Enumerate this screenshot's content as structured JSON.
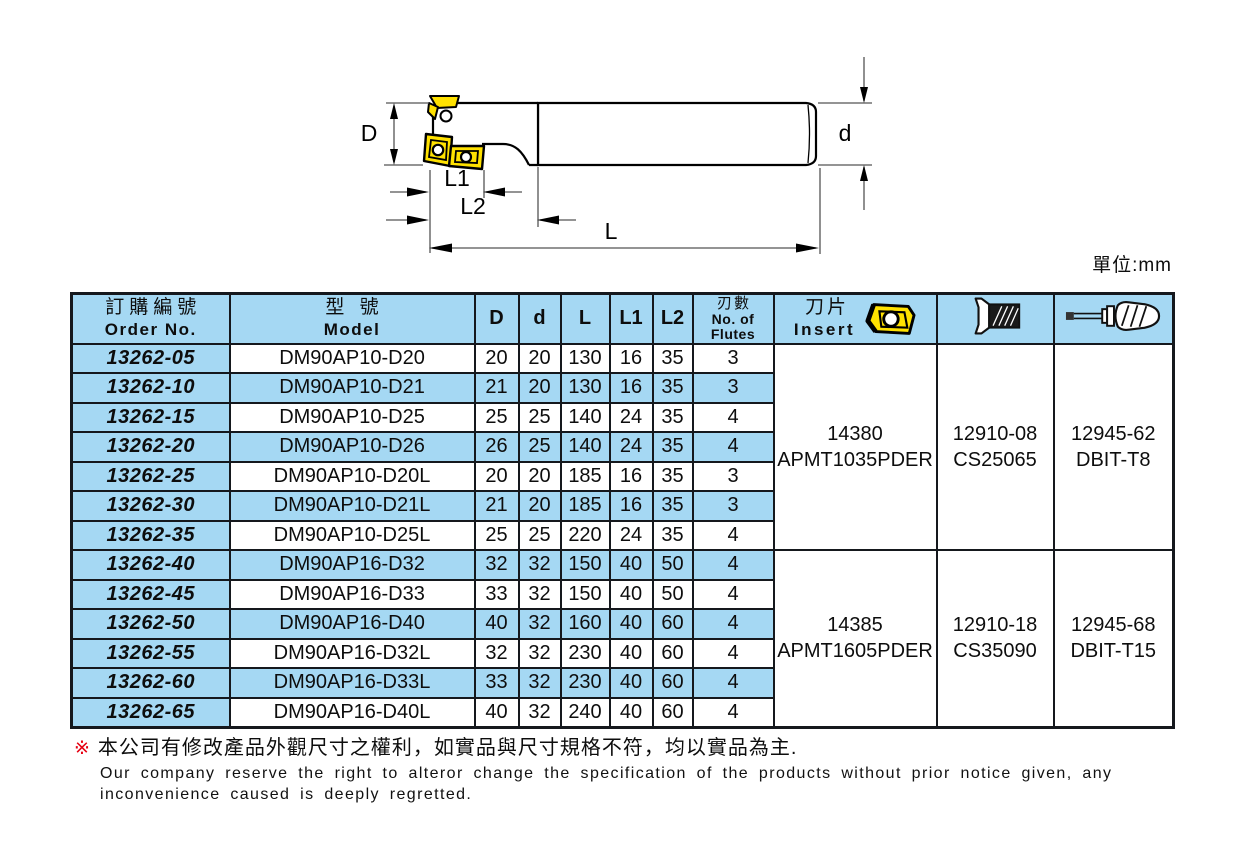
{
  "unit_label": "單位:mm",
  "diagram": {
    "name": "indexable-end-mill-technical-drawing",
    "labels": {
      "D": "D",
      "d": "d",
      "L1": "L1",
      "L2": "L2",
      "L": "L"
    },
    "icons": [
      "milling-insert",
      "screw-hole"
    ]
  },
  "table": {
    "headers": {
      "order_zh": "訂購編號",
      "order_en": "Order No.",
      "model_zh": "型 號",
      "model_en": "Model",
      "D": "D",
      "d": "d",
      "L": "L",
      "L1": "L1",
      "L2": "L2",
      "flutes_zh": "刃數",
      "flutes_en1": "No. of",
      "flutes_en2": "Flutes",
      "insert_zh": "刀片",
      "insert_en": "Insert",
      "insert_icon": "milling-insert-icon",
      "screw_icon": "countersunk-screw-icon",
      "driver_icon": "torx-driver-icon"
    },
    "rows": [
      {
        "order": "13262-05",
        "model": "DM90AP10-D20",
        "D": "20",
        "d": "20",
        "L": "130",
        "L1": "16",
        "L2": "35",
        "flutes": "3"
      },
      {
        "order": "13262-10",
        "model": "DM90AP10-D21",
        "D": "21",
        "d": "20",
        "L": "130",
        "L1": "16",
        "L2": "35",
        "flutes": "3"
      },
      {
        "order": "13262-15",
        "model": "DM90AP10-D25",
        "D": "25",
        "d": "25",
        "L": "140",
        "L1": "24",
        "L2": "35",
        "flutes": "4"
      },
      {
        "order": "13262-20",
        "model": "DM90AP10-D26",
        "D": "26",
        "d": "25",
        "L": "140",
        "L1": "24",
        "L2": "35",
        "flutes": "4"
      },
      {
        "order": "13262-25",
        "model": "DM90AP10-D20L",
        "D": "20",
        "d": "20",
        "L": "185",
        "L1": "16",
        "L2": "35",
        "flutes": "3"
      },
      {
        "order": "13262-30",
        "model": "DM90AP10-D21L",
        "D": "21",
        "d": "20",
        "L": "185",
        "L1": "16",
        "L2": "35",
        "flutes": "3"
      },
      {
        "order": "13262-35",
        "model": "DM90AP10-D25L",
        "D": "25",
        "d": "25",
        "L": "220",
        "L1": "24",
        "L2": "35",
        "flutes": "4"
      },
      {
        "order": "13262-40",
        "model": "DM90AP16-D32",
        "D": "32",
        "d": "32",
        "L": "150",
        "L1": "40",
        "L2": "50",
        "flutes": "4"
      },
      {
        "order": "13262-45",
        "model": "DM90AP16-D33",
        "D": "33",
        "d": "32",
        "L": "150",
        "L1": "40",
        "L2": "50",
        "flutes": "4"
      },
      {
        "order": "13262-50",
        "model": "DM90AP16-D40",
        "D": "40",
        "d": "32",
        "L": "160",
        "L1": "40",
        "L2": "60",
        "flutes": "4"
      },
      {
        "order": "13262-55",
        "model": "DM90AP16-D32L",
        "D": "32",
        "d": "32",
        "L": "230",
        "L1": "40",
        "L2": "60",
        "flutes": "4"
      },
      {
        "order": "13262-60",
        "model": "DM90AP16-D33L",
        "D": "33",
        "d": "32",
        "L": "230",
        "L1": "40",
        "L2": "60",
        "flutes": "4"
      },
      {
        "order": "13262-65",
        "model": "DM90AP16-D40L",
        "D": "40",
        "d": "32",
        "L": "240",
        "L1": "40",
        "L2": "60",
        "flutes": "4"
      }
    ],
    "groups": [
      {
        "start": 0,
        "rows": 7,
        "insert": [
          "14380",
          "APMT1035PDER"
        ],
        "screw": [
          "12910-08",
          "CS25065"
        ],
        "driver": [
          "12945-62",
          "DBIT-T8"
        ]
      },
      {
        "start": 7,
        "rows": 6,
        "insert": [
          "14385",
          "APMT1605PDER"
        ],
        "screw": [
          "12910-18",
          "CS35090"
        ],
        "driver": [
          "12945-68",
          "DBIT-T15"
        ]
      }
    ]
  },
  "footnote": {
    "marker": "※",
    "zh": "本公司有修改產品外觀尺寸之權利，如實品與尺寸規格不符，均以實品為主.",
    "en1": "Our company reserve the right to alteror change the specification of the products without prior notice given, any",
    "en2": "inconvenience caused is deeply regretted."
  },
  "colors": {
    "row_blue": "#a5d8f3",
    "table_border": "#15181d",
    "insert_yellow": "#ffe100",
    "footnote_marker_red": "#e60012"
  }
}
